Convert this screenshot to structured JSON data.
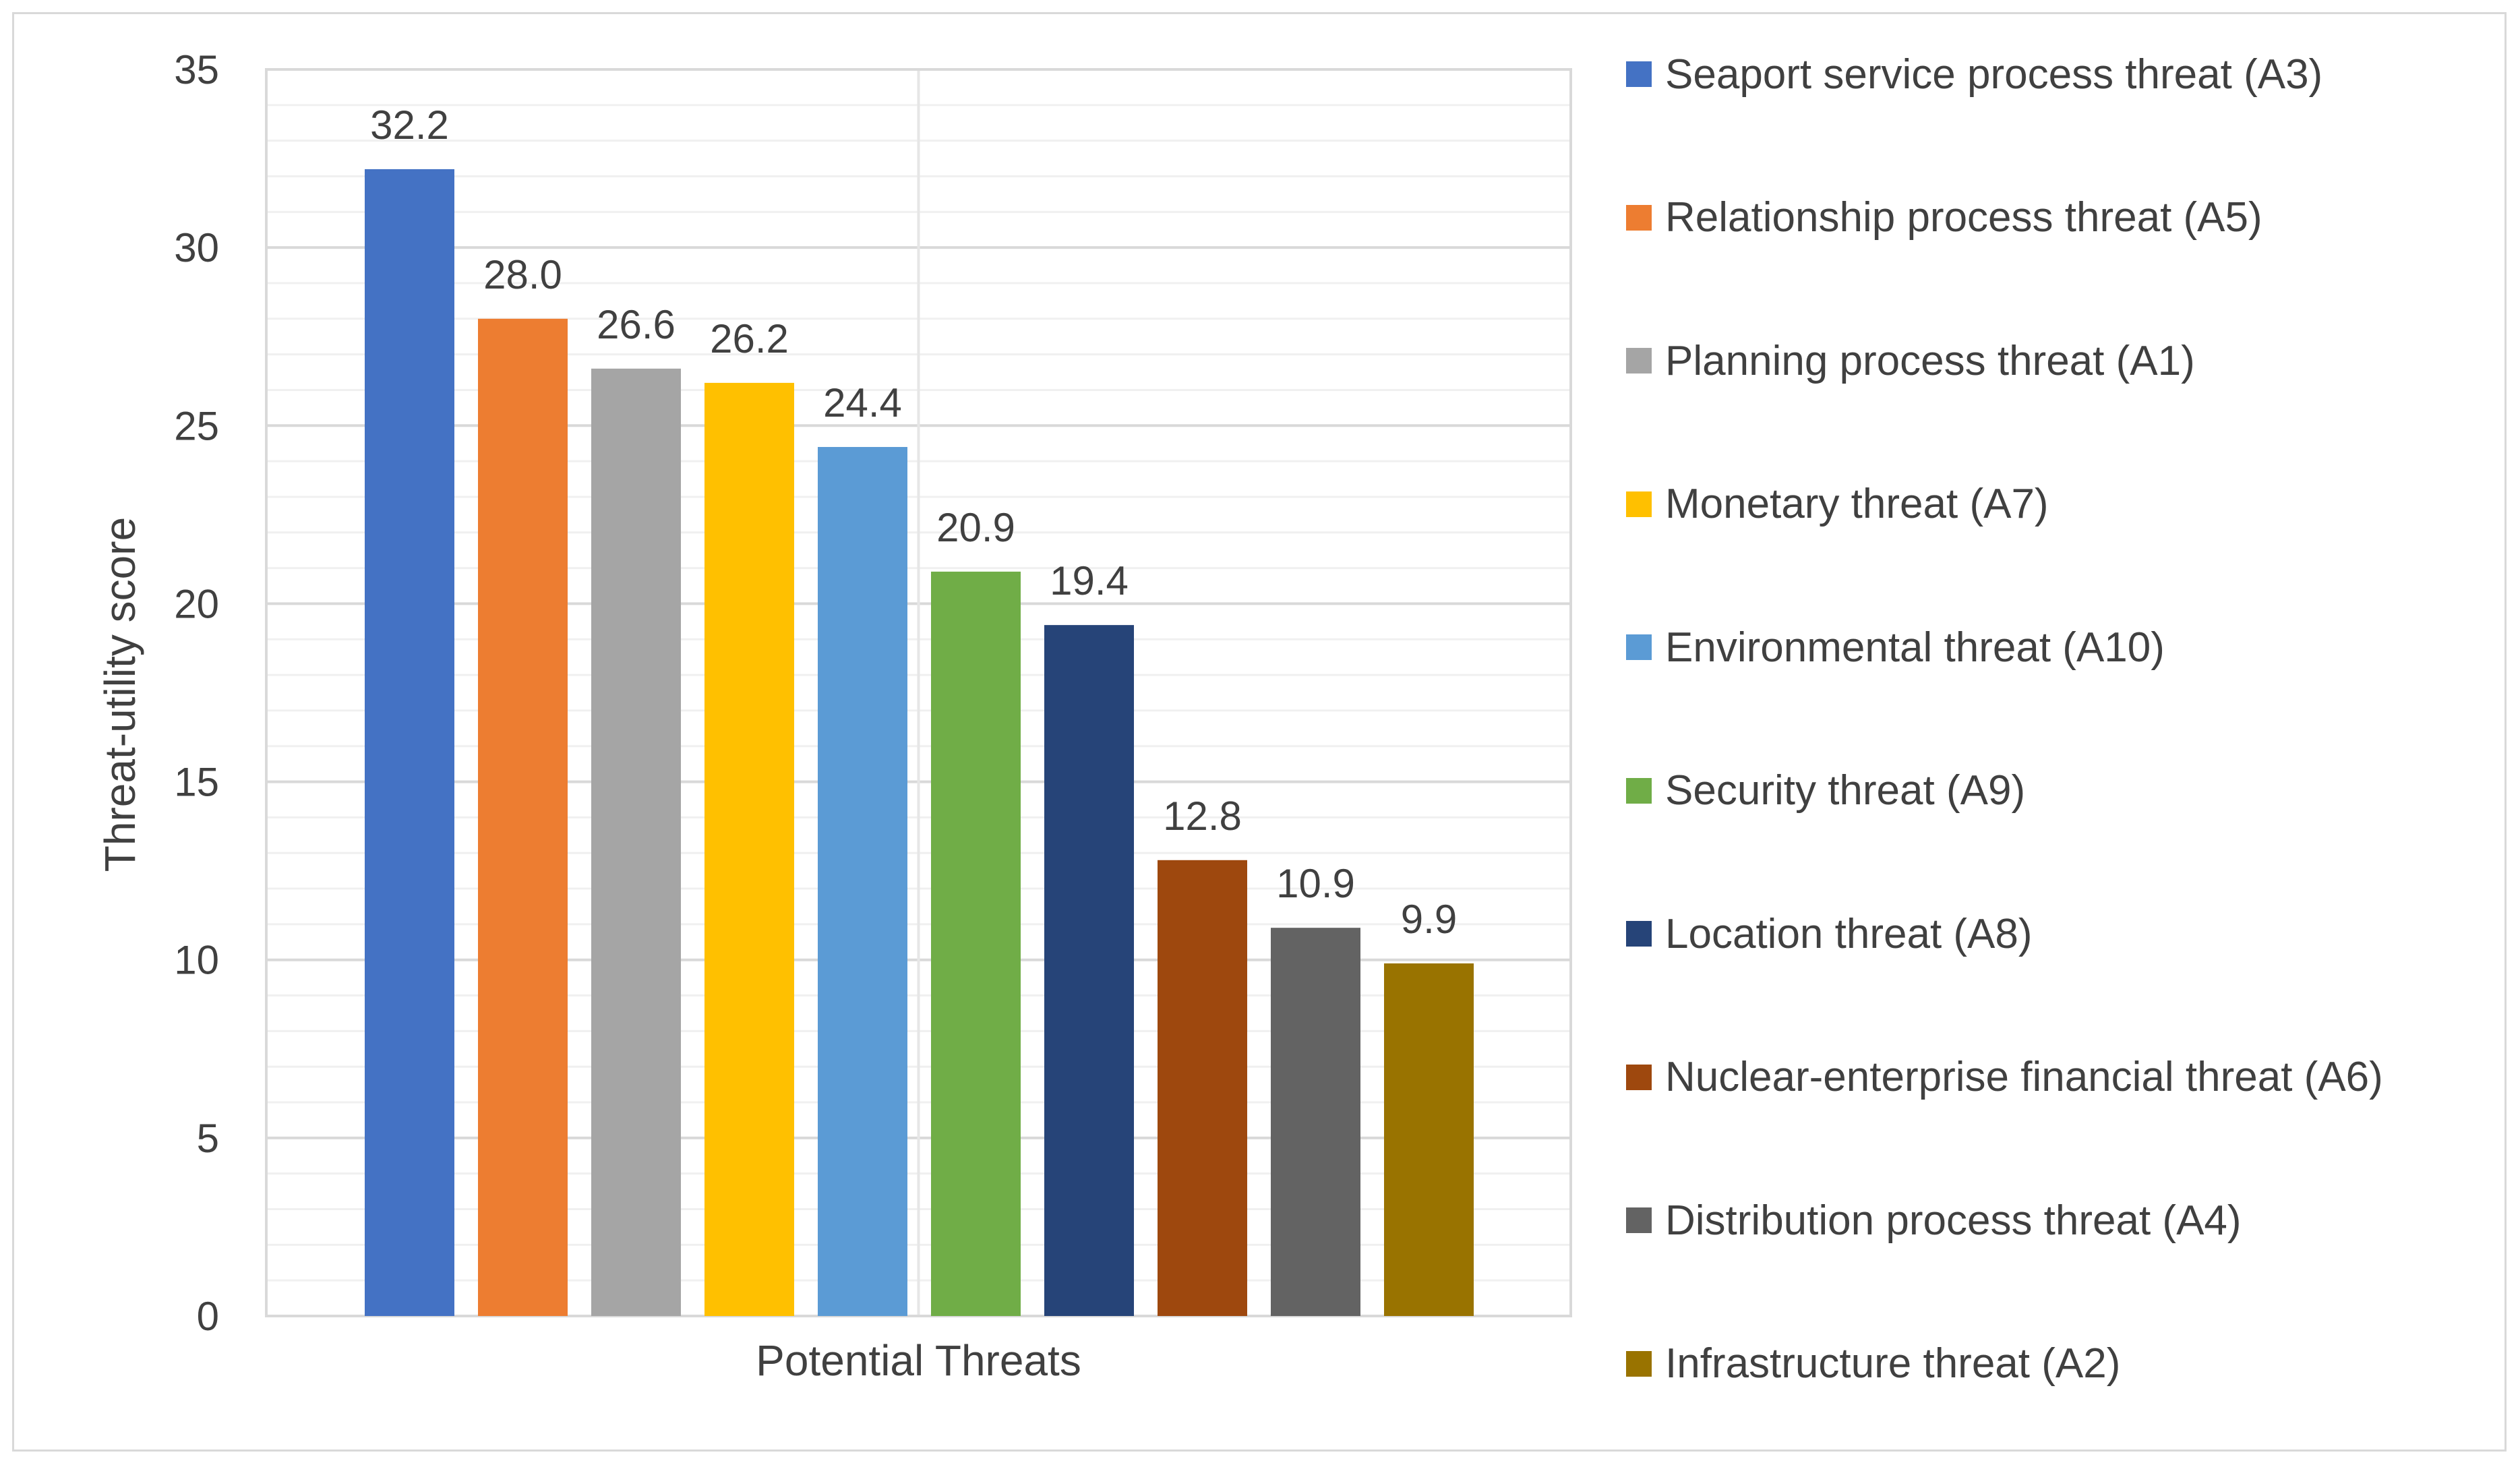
{
  "chart_data": {
    "type": "bar",
    "title": "",
    "xlabel": "Potential Threats",
    "ylabel": "Threat-utility score",
    "ylim": [
      0,
      35
    ],
    "yticks": [
      0,
      5,
      10,
      15,
      20,
      25,
      30,
      35
    ],
    "grid": true,
    "legend_position": "right",
    "series": [
      {
        "name": "Seaport service process threat (A3)",
        "value": 32.2,
        "label": "32.2",
        "color": "#4472C4"
      },
      {
        "name": "Relationship process threat (A5)",
        "value": 28.0,
        "label": "28.0",
        "color": "#ED7D31"
      },
      {
        "name": "Planning process threat (A1)",
        "value": 26.6,
        "label": "26.6",
        "color": "#A5A5A5"
      },
      {
        "name": "Monetary threat (A7)",
        "value": 26.2,
        "label": "26.2",
        "color": "#FFC000"
      },
      {
        "name": "Environmental threat (A10)",
        "value": 24.4,
        "label": "24.4",
        "color": "#5B9BD5"
      },
      {
        "name": "Security threat (A9)",
        "value": 20.9,
        "label": "20.9",
        "color": "#70AD47"
      },
      {
        "name": "Location threat (A8)",
        "value": 19.4,
        "label": "19.4",
        "color": "#264478"
      },
      {
        "name": "Nuclear-enterprise financial threat (A6)",
        "value": 12.8,
        "label": "12.8",
        "color": "#9E480E"
      },
      {
        "name": "Distribution process threat (A4)",
        "value": 10.9,
        "label": "10.9",
        "color": "#636363"
      },
      {
        "name": "Infrastructure threat (A2)",
        "value": 9.9,
        "label": "9.9",
        "color": "#997300"
      }
    ]
  }
}
